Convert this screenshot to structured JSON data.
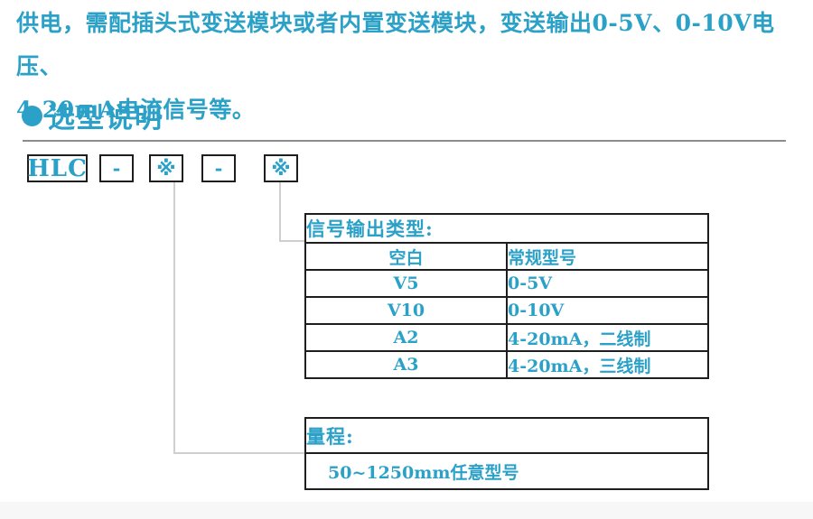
{
  "intro": {
    "line1": "供电，需配插头式变送模块或者内置变送模块，变送输出0-5V、0-10V电压、",
    "line2": "4-20mA电流信号等。"
  },
  "section": {
    "title": "选型说明"
  },
  "model_code": {
    "boxes": [
      "HLC",
      "-",
      "※",
      "-",
      "※"
    ]
  },
  "signal_table": {
    "title": "信号输出类型:",
    "rows": [
      {
        "code": "空白",
        "desc": "常规型号"
      },
      {
        "code": "V5",
        "desc": "0-5V"
      },
      {
        "code": "V10",
        "desc": "0-10V"
      },
      {
        "code": "A2",
        "desc": "4-20mA，二线制"
      },
      {
        "code": "A3",
        "desc": "4-20mA，三线制"
      }
    ]
  },
  "range_table": {
    "title": "量程:",
    "value": "50~1250mm任意型号"
  },
  "colors": {
    "accent": "#2ba1c8",
    "table_border": "#1e1e1e",
    "connector_line": "#cfcfcf",
    "section_rule": "#8c8c8c",
    "footer_background": "#f7f7f7"
  }
}
